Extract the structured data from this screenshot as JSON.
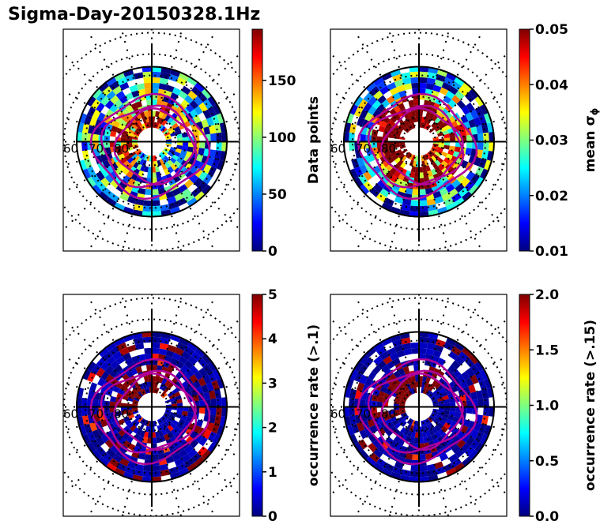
{
  "title": "Sigma-Day-20150328.1Hz",
  "colors": {
    "jet": [
      "#00007f",
      "#0000ff",
      "#007fff",
      "#00ffff",
      "#7fff7f",
      "#ffff00",
      "#ff7f00",
      "#ff0000",
      "#7f0000"
    ],
    "contour": "#b0009a",
    "frame": "#000000"
  },
  "lat_labels": [
    "60",
    "70",
    "80"
  ],
  "chart_data": [
    {
      "type": "heatmap",
      "projection": "polar",
      "colorbar": {
        "label": "Data points",
        "range": [
          0,
          195
        ],
        "ticks": [
          "0",
          "50",
          "100",
          "150"
        ]
      },
      "panel_seed": 1,
      "bias": 0.45
    },
    {
      "type": "heatmap",
      "projection": "polar",
      "colorbar": {
        "label": "mean σ",
        "label_sub": "ϕ",
        "range": [
          0.01,
          0.05
        ],
        "ticks": [
          "0.01",
          "0.02",
          "0.03",
          "0.04",
          "0.05"
        ]
      },
      "panel_seed": 2,
      "bias": 0.55
    },
    {
      "type": "heatmap",
      "projection": "polar",
      "colorbar": {
        "label": "occurrence rate (>.1)",
        "range": [
          0,
          5
        ],
        "ticks": [
          "0",
          "1",
          "2",
          "3",
          "4",
          "5"
        ]
      },
      "panel_seed": 3,
      "bias": 0.18
    },
    {
      "type": "heatmap",
      "projection": "polar",
      "colorbar": {
        "label": "occurrence rate (>.15)",
        "range": [
          0,
          2
        ],
        "ticks": [
          "0.0",
          "0.5",
          "1.0",
          "1.5",
          "2.0"
        ]
      },
      "panel_seed": 4,
      "bias": 0.12
    }
  ]
}
